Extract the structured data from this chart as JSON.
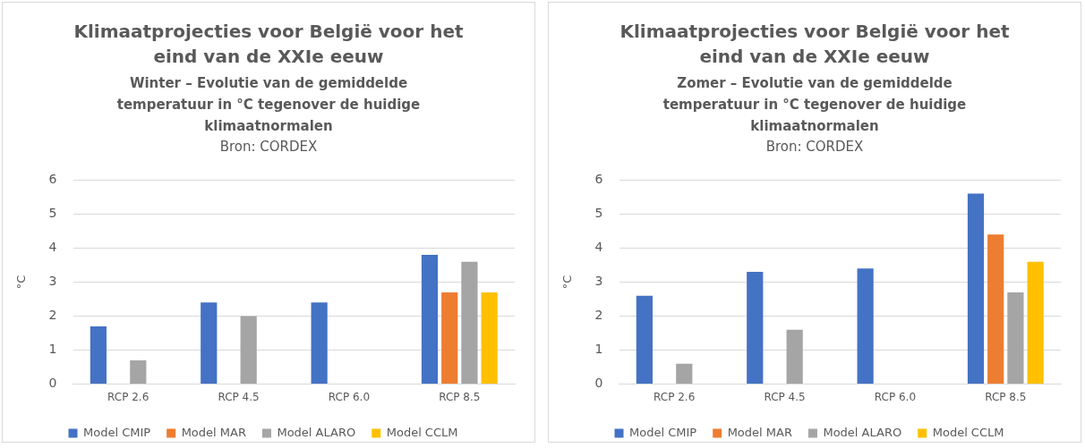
{
  "chart_data": [
    {
      "type": "bar",
      "title": "Klimaatprojecties voor België voor het eind van de XXIe eeuw",
      "subtitle": "Winter – Evolutie van de gemiddelde temperatuur in °C tegenover de huidige klimaatnormalen",
      "annotations": [
        "Bron: CORDEX"
      ],
      "ylabel": "°C",
      "categories": [
        "RCP 2.6",
        "RCP 4.5",
        "RCP 6.0",
        "RCP 8.5"
      ],
      "ylim": [
        0,
        6
      ],
      "yticks": [
        0,
        1,
        2,
        3,
        4,
        5,
        6
      ],
      "grid": "y",
      "legend": "bottom",
      "series": [
        {
          "name": "Model CMIP",
          "color": "#4472c4",
          "values": [
            1.7,
            2.4,
            2.4,
            3.8
          ]
        },
        {
          "name": "Model MAR",
          "color": "#ed7d31",
          "values": [
            null,
            null,
            null,
            2.7
          ]
        },
        {
          "name": "Model ALARO",
          "color": "#a5a5a5",
          "values": [
            0.7,
            2.0,
            null,
            3.6
          ]
        },
        {
          "name": "Model CCLM",
          "color": "#ffc000",
          "values": [
            null,
            null,
            null,
            2.7
          ]
        }
      ]
    },
    {
      "type": "bar",
      "title": "Klimaatprojecties voor België voor het eind van de XXIe eeuw",
      "subtitle": "Zomer – Evolutie van de gemiddelde temperatuur in °C tegenover de huidige klimaatnormalen",
      "annotations": [
        "Bron: CORDEX"
      ],
      "ylabel": "°C",
      "categories": [
        "RCP 2.6",
        "RCP 4.5",
        "RCP 6.0",
        "RCP 8.5"
      ],
      "ylim": [
        0,
        6
      ],
      "yticks": [
        0,
        1,
        2,
        3,
        4,
        5,
        6
      ],
      "grid": "y",
      "legend": "bottom",
      "series": [
        {
          "name": "Model CMIP",
          "color": "#4472c4",
          "values": [
            2.6,
            3.3,
            3.4,
            5.6
          ]
        },
        {
          "name": "Model MAR",
          "color": "#ed7d31",
          "values": [
            null,
            null,
            null,
            4.4
          ]
        },
        {
          "name": "Model ALARO",
          "color": "#a5a5a5",
          "values": [
            0.6,
            1.6,
            null,
            2.7
          ]
        },
        {
          "name": "Model CCLM",
          "color": "#ffc000",
          "values": [
            null,
            null,
            null,
            3.6
          ]
        }
      ]
    }
  ]
}
